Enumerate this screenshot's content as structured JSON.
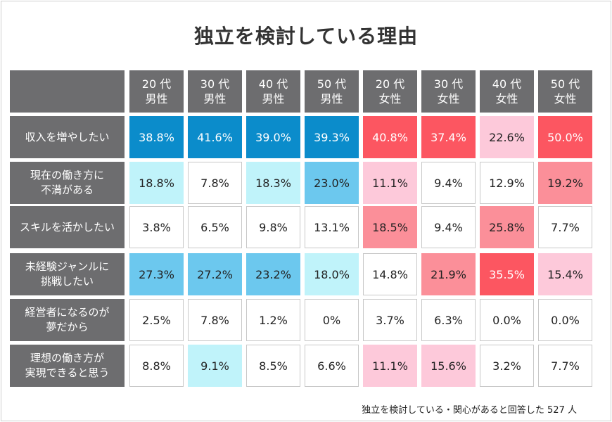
{
  "chart_data": {
    "type": "table",
    "title": "独立を検討している理由",
    "columns": [
      "20 代\n男性",
      "30 代\n男性",
      "40 代\n男性",
      "50 代\n男性",
      "20 代\n女性",
      "30 代\n女性",
      "40 代\n女性",
      "50 代\n女性"
    ],
    "rows": [
      {
        "label": "収入を増やしたい",
        "values": [
          "38.8%",
          "41.6%",
          "39.0%",
          "39.3%",
          "40.8%",
          "37.4%",
          "22.6%",
          "50.0%"
        ],
        "levels": [
          "b3",
          "b3",
          "b3",
          "b3",
          "r3",
          "r3",
          "r1",
          "r3"
        ]
      },
      {
        "label": "現在の働き方に\n不満がある",
        "values": [
          "18.8%",
          "7.8%",
          "18.3%",
          "23.0%",
          "11.1%",
          "9.4%",
          "12.9%",
          "19.2%"
        ],
        "levels": [
          "b1",
          "w",
          "b1",
          "b2",
          "r1",
          "w",
          "w",
          "r2"
        ]
      },
      {
        "label": "スキルを活かしたい",
        "values": [
          "3.8%",
          "6.5%",
          "9.8%",
          "13.1%",
          "18.5%",
          "9.4%",
          "25.8%",
          "7.7%"
        ],
        "levels": [
          "w",
          "w",
          "w",
          "w",
          "r2",
          "w",
          "r2",
          "w"
        ]
      },
      {
        "label": "未経験ジャンルに\n挑戦したい",
        "values": [
          "27.3%",
          "27.2%",
          "23.2%",
          "18.0%",
          "14.8%",
          "21.9%",
          "35.5%",
          "15.4%"
        ],
        "levels": [
          "b2",
          "b2",
          "b2",
          "b1",
          "w",
          "r2",
          "r3",
          "r1"
        ]
      },
      {
        "label": "経営者になるのが\n夢だから",
        "values": [
          "2.5%",
          "7.8%",
          "1.2%",
          "0%",
          "3.7%",
          "6.3%",
          "0.0%",
          "0.0%"
        ],
        "levels": [
          "w",
          "w",
          "w",
          "w",
          "w",
          "w",
          "w",
          "w"
        ]
      },
      {
        "label": "理想の働き方が\n実現できると思う",
        "values": [
          "8.8%",
          "9.1%",
          "8.5%",
          "6.6%",
          "11.1%",
          "15.6%",
          "3.2%",
          "7.7%"
        ],
        "levels": [
          "w",
          "b1",
          "w",
          "w",
          "r1",
          "r1",
          "w",
          "w"
        ]
      }
    ],
    "level_colors": {
      "b3": "#0b8ccb",
      "b2": "#6cc8ee",
      "b1": "#c0f3fa",
      "r3": "#fc5661",
      "r2": "#fb8f99",
      "r1": "#fdc9da",
      "w": "#ffffff"
    },
    "dark_text_levels": [
      "b3",
      "r3"
    ]
  },
  "footnote": "独立を検討している・関心があると回答した 527 人"
}
